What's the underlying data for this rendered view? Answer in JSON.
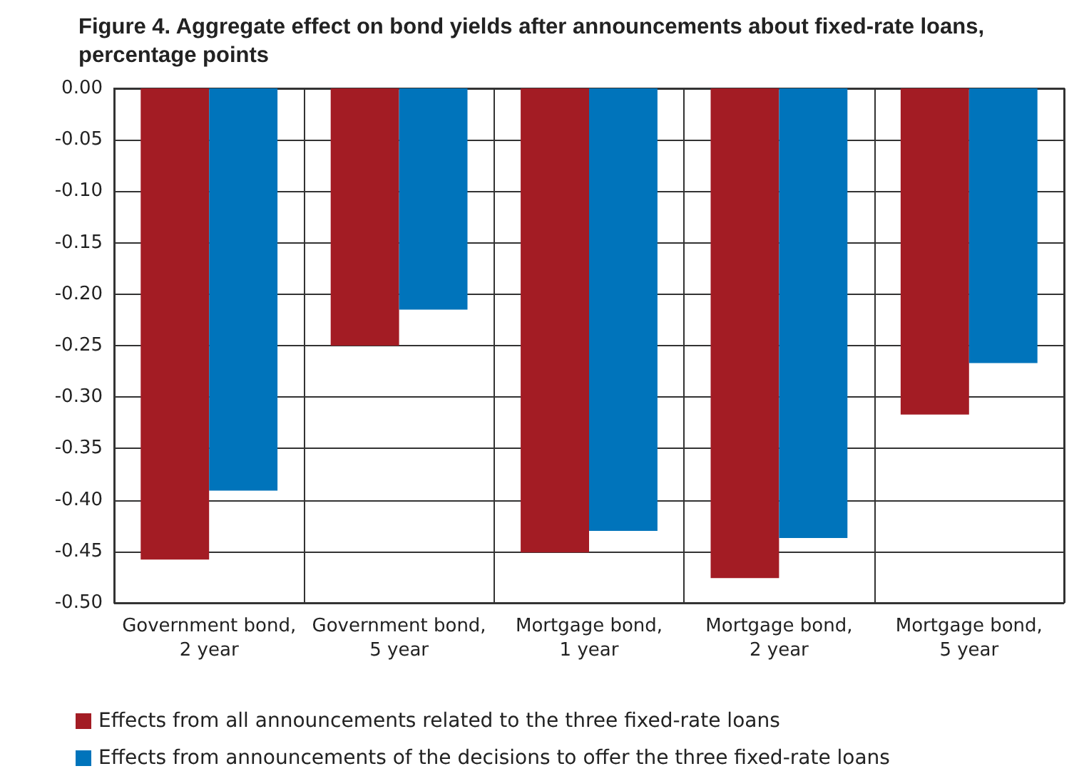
{
  "chart_data": {
    "type": "bar",
    "title": "Figure 4. Aggregate effect on bond yields after announcements about fixed-rate loans,\npercentage points",
    "categories": [
      "Government bond,\n2 year",
      "Government bond,\n5 year",
      "Mortgage bond,\n1 year",
      "Mortgage bond,\n2 year",
      "Mortgage bond,\n5 year"
    ],
    "series": [
      {
        "name": "Effects from all announcements related to the three fixed-rate loans",
        "color": "#a31c24",
        "values": [
          -0.458,
          -0.25,
          -0.451,
          -0.476,
          -0.317
        ]
      },
      {
        "name": "Effects from announcements of the decisions to offer the three fixed-rate loans",
        "color": "#0074bb",
        "values": [
          -0.391,
          -0.215,
          -0.43,
          -0.437,
          -0.267
        ]
      }
    ],
    "ylim": [
      -0.5,
      0
    ],
    "yticks": [
      {
        "value": -0.5,
        "label": "-0.50"
      },
      {
        "value": -0.45,
        "label": "-0.45"
      },
      {
        "value": -0.4,
        "label": "-0.40"
      },
      {
        "value": -0.35,
        "label": "-0.35"
      },
      {
        "value": -0.3,
        "label": "-0.30"
      },
      {
        "value": -0.25,
        "label": "-0.25"
      },
      {
        "value": -0.2,
        "label": "-0.20"
      },
      {
        "value": -0.15,
        "label": "-0.15"
      },
      {
        "value": -0.1,
        "label": "-0.10"
      },
      {
        "value": -0.05,
        "label": "-0.05"
      },
      {
        "value": 0,
        "label": "0.00"
      }
    ],
    "grid": true,
    "legend": "bottom"
  }
}
